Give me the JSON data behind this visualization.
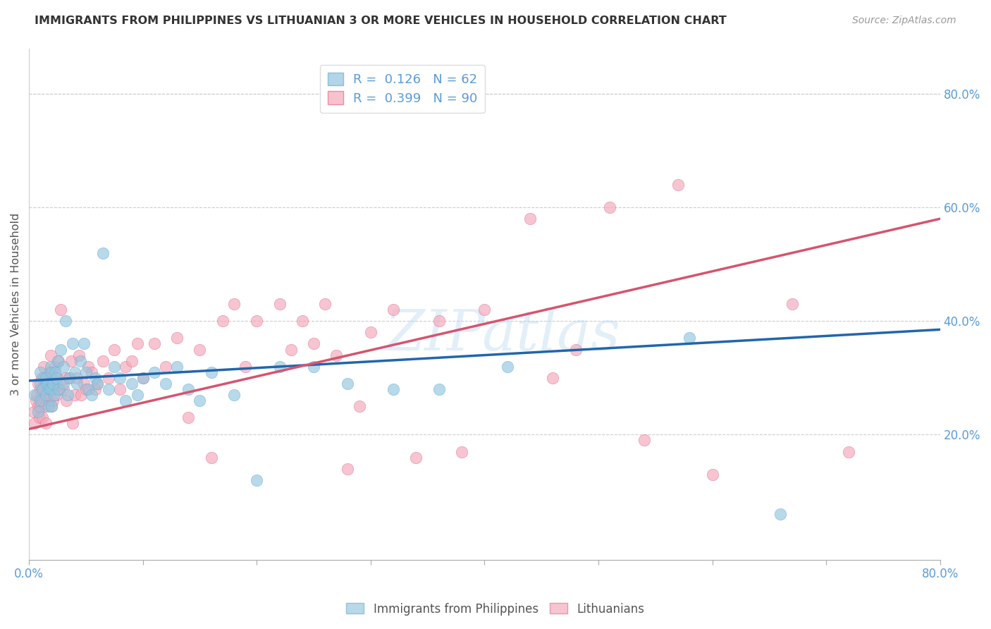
{
  "title": "IMMIGRANTS FROM PHILIPPINES VS LITHUANIAN 3 OR MORE VEHICLES IN HOUSEHOLD CORRELATION CHART",
  "source_text": "Source: ZipAtlas.com",
  "ylabel": "3 or more Vehicles in Household",
  "xlim": [
    0.0,
    0.8
  ],
  "ylim": [
    -0.02,
    0.88
  ],
  "x_ticks": [
    0.0,
    0.1,
    0.2,
    0.3,
    0.4,
    0.5,
    0.6,
    0.7,
    0.8
  ],
  "y_ticks_right": [
    0.2,
    0.4,
    0.6,
    0.8
  ],
  "philippines_color": "#92c5de",
  "philippines_edge_color": "#6baed6",
  "lithuanians_color": "#f4a7b9",
  "lithuanians_edge_color": "#e07090",
  "phil_trend_color": "#2166ac",
  "lith_trend_color": "#d6546e",
  "philippines_R": 0.126,
  "philippines_N": 62,
  "lithuanians_R": 0.399,
  "lithuanians_N": 90,
  "phil_trend_x0": 0.0,
  "phil_trend_y0": 0.295,
  "phil_trend_x1": 0.8,
  "phil_trend_y1": 0.385,
  "lith_trend_x0": 0.0,
  "lith_trend_y0": 0.21,
  "lith_trend_x1": 0.8,
  "lith_trend_y1": 0.58,
  "watermark": "ZIPatlas",
  "philippines_x": [
    0.005,
    0.008,
    0.01,
    0.01,
    0.01,
    0.012,
    0.013,
    0.015,
    0.015,
    0.016,
    0.017,
    0.018,
    0.019,
    0.02,
    0.02,
    0.02,
    0.021,
    0.022,
    0.023,
    0.024,
    0.025,
    0.026,
    0.028,
    0.03,
    0.03,
    0.032,
    0.034,
    0.036,
    0.038,
    0.04,
    0.042,
    0.045,
    0.048,
    0.05,
    0.052,
    0.055,
    0.058,
    0.06,
    0.065,
    0.07,
    0.075,
    0.08,
    0.085,
    0.09,
    0.095,
    0.1,
    0.11,
    0.12,
    0.13,
    0.14,
    0.15,
    0.16,
    0.18,
    0.2,
    0.22,
    0.25,
    0.28,
    0.32,
    0.36,
    0.42,
    0.58,
    0.66
  ],
  "philippines_y": [
    0.27,
    0.24,
    0.26,
    0.29,
    0.31,
    0.28,
    0.3,
    0.27,
    0.3,
    0.29,
    0.25,
    0.28,
    0.32,
    0.25,
    0.28,
    0.31,
    0.29,
    0.27,
    0.31,
    0.3,
    0.33,
    0.28,
    0.35,
    0.29,
    0.32,
    0.4,
    0.27,
    0.3,
    0.36,
    0.31,
    0.29,
    0.33,
    0.36,
    0.31,
    0.28,
    0.27,
    0.3,
    0.29,
    0.52,
    0.28,
    0.32,
    0.3,
    0.26,
    0.29,
    0.27,
    0.3,
    0.31,
    0.29,
    0.32,
    0.28,
    0.26,
    0.31,
    0.27,
    0.12,
    0.32,
    0.32,
    0.29,
    0.28,
    0.28,
    0.32,
    0.37,
    0.06
  ],
  "lithuanians_x": [
    0.004,
    0.005,
    0.006,
    0.007,
    0.008,
    0.008,
    0.009,
    0.01,
    0.01,
    0.011,
    0.012,
    0.012,
    0.013,
    0.013,
    0.014,
    0.015,
    0.015,
    0.016,
    0.016,
    0.017,
    0.018,
    0.018,
    0.019,
    0.02,
    0.02,
    0.021,
    0.022,
    0.023,
    0.024,
    0.025,
    0.026,
    0.027,
    0.028,
    0.03,
    0.032,
    0.033,
    0.035,
    0.037,
    0.038,
    0.04,
    0.042,
    0.044,
    0.046,
    0.048,
    0.05,
    0.052,
    0.055,
    0.058,
    0.06,
    0.065,
    0.07,
    0.075,
    0.08,
    0.085,
    0.09,
    0.095,
    0.1,
    0.11,
    0.12,
    0.13,
    0.14,
    0.15,
    0.16,
    0.17,
    0.18,
    0.19,
    0.2,
    0.22,
    0.23,
    0.24,
    0.25,
    0.26,
    0.27,
    0.28,
    0.29,
    0.3,
    0.32,
    0.34,
    0.36,
    0.38,
    0.4,
    0.44,
    0.46,
    0.48,
    0.51,
    0.54,
    0.57,
    0.6,
    0.67,
    0.72
  ],
  "lithuanians_y": [
    0.24,
    0.22,
    0.26,
    0.27,
    0.25,
    0.29,
    0.23,
    0.25,
    0.28,
    0.3,
    0.26,
    0.23,
    0.28,
    0.32,
    0.25,
    0.22,
    0.29,
    0.27,
    0.3,
    0.26,
    0.28,
    0.31,
    0.34,
    0.25,
    0.3,
    0.26,
    0.28,
    0.32,
    0.27,
    0.3,
    0.33,
    0.28,
    0.42,
    0.28,
    0.3,
    0.26,
    0.3,
    0.33,
    0.22,
    0.27,
    0.3,
    0.34,
    0.27,
    0.29,
    0.28,
    0.32,
    0.31,
    0.28,
    0.29,
    0.33,
    0.3,
    0.35,
    0.28,
    0.32,
    0.33,
    0.36,
    0.3,
    0.36,
    0.32,
    0.37,
    0.23,
    0.35,
    0.16,
    0.4,
    0.43,
    0.32,
    0.4,
    0.43,
    0.35,
    0.4,
    0.36,
    0.43,
    0.34,
    0.14,
    0.25,
    0.38,
    0.42,
    0.16,
    0.4,
    0.17,
    0.42,
    0.58,
    0.3,
    0.35,
    0.6,
    0.19,
    0.64,
    0.13,
    0.43,
    0.17
  ]
}
